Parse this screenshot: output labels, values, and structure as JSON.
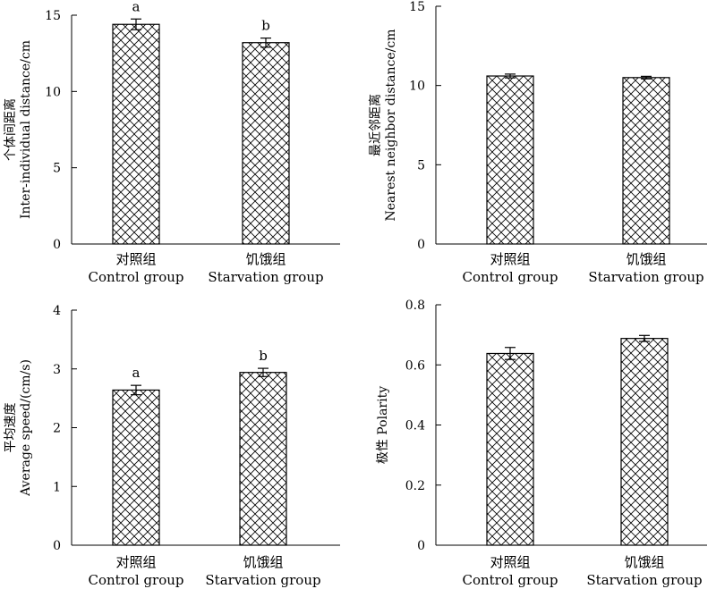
{
  "chart_data": [
    {
      "type": "bar",
      "ylabel_lines": [
        "个体间距离",
        "Inter-individual distance/cm"
      ],
      "categories": [
        [
          "对照组",
          "Control group"
        ],
        [
          "饥饿组",
          "Starvation group"
        ]
      ],
      "values": [
        14.4,
        13.2
      ],
      "errors": [
        0.35,
        0.3
      ],
      "significance": [
        "a",
        "b"
      ],
      "ylim": [
        0,
        15
      ],
      "yticks": [
        0,
        5,
        10,
        15
      ],
      "ytick_labels": [
        "0",
        "5",
        "10",
        "15"
      ]
    },
    {
      "type": "bar",
      "ylabel_lines": [
        "最近邻距离",
        "Nearest neighbor distance/cm"
      ],
      "categories": [
        [
          "对照组",
          "Control group"
        ],
        [
          "饥饿组",
          "Starvation group"
        ]
      ],
      "values": [
        10.6,
        10.5
      ],
      "errors": [
        0.12,
        0.08
      ],
      "significance": [
        "",
        ""
      ],
      "ylim": [
        0,
        15
      ],
      "yticks": [
        0,
        5,
        10,
        15
      ],
      "ytick_labels": [
        "0",
        "5",
        "10",
        "15"
      ]
    },
    {
      "type": "bar",
      "ylabel_lines": [
        "平均速度",
        "Average speed/(cm/s)"
      ],
      "categories": [
        [
          "对照组",
          "Control group"
        ],
        [
          "饥饿组",
          "Starvation group"
        ]
      ],
      "values": [
        2.64,
        2.94
      ],
      "errors": [
        0.08,
        0.07
      ],
      "significance": [
        "a",
        "b"
      ],
      "ylim": [
        0,
        4
      ],
      "yticks": [
        0,
        1,
        2,
        3,
        4
      ],
      "ytick_labels": [
        "0",
        "1",
        "2",
        "3",
        "4"
      ]
    },
    {
      "type": "bar",
      "ylabel_lines": [
        "极性 Polarity"
      ],
      "categories": [
        [
          "对照组",
          "Control group"
        ],
        [
          "饥饿组",
          "Starvation group"
        ]
      ],
      "values": [
        0.638,
        0.688
      ],
      "errors": [
        0.02,
        0.01
      ],
      "significance": [
        "",
        ""
      ],
      "ylim": [
        0,
        0.8
      ],
      "yticks": [
        0,
        0.2,
        0.4,
        0.6,
        0.8
      ],
      "ytick_labels": [
        "0",
        "0.2",
        "0.4",
        "0.6",
        "0.8"
      ]
    }
  ]
}
